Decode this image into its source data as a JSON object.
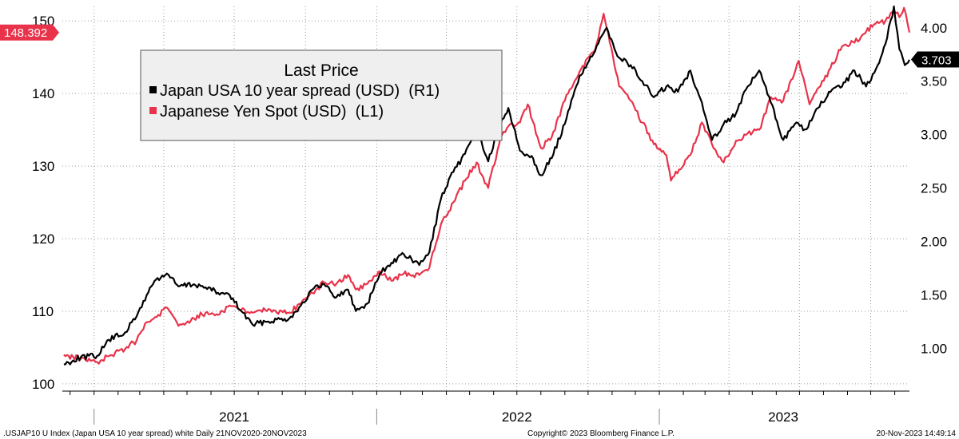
{
  "chart_data": {
    "type": "line",
    "legend": {
      "title": "Last Price",
      "placement": "top-left"
    },
    "series": [
      {
        "name": "Japan USA 10 year spread (USD)  (R1)",
        "axis": "right",
        "color": "#000000",
        "last_value_label": "3.703",
        "points": [
          [
            "2020-11-23",
            0.85
          ],
          [
            "2020-12-15",
            0.92
          ],
          [
            "2021-01-05",
            0.93
          ],
          [
            "2021-01-20",
            1.08
          ],
          [
            "2021-02-10",
            1.15
          ],
          [
            "2021-02-25",
            1.3
          ],
          [
            "2021-03-10",
            1.5
          ],
          [
            "2021-03-20",
            1.63
          ],
          [
            "2021-04-05",
            1.7
          ],
          [
            "2021-04-20",
            1.58
          ],
          [
            "2021-05-10",
            1.6
          ],
          [
            "2021-05-25",
            1.57
          ],
          [
            "2021-06-10",
            1.52
          ],
          [
            "2021-06-25",
            1.5
          ],
          [
            "2021-07-10",
            1.35
          ],
          [
            "2021-07-25",
            1.22
          ],
          [
            "2021-08-10",
            1.25
          ],
          [
            "2021-08-25",
            1.27
          ],
          [
            "2021-09-10",
            1.28
          ],
          [
            "2021-09-25",
            1.4
          ],
          [
            "2021-10-10",
            1.55
          ],
          [
            "2021-10-25",
            1.6
          ],
          [
            "2021-11-10",
            1.48
          ],
          [
            "2021-11-25",
            1.55
          ],
          [
            "2021-12-05",
            1.35
          ],
          [
            "2021-12-20",
            1.42
          ],
          [
            "2022-01-05",
            1.7
          ],
          [
            "2022-01-20",
            1.8
          ],
          [
            "2022-02-05",
            1.88
          ],
          [
            "2022-02-25",
            1.78
          ],
          [
            "2022-03-10",
            1.9
          ],
          [
            "2022-03-25",
            2.4
          ],
          [
            "2022-04-10",
            2.65
          ],
          [
            "2022-04-25",
            2.82
          ],
          [
            "2022-05-10",
            3.05
          ],
          [
            "2022-05-25",
            2.75
          ],
          [
            "2022-06-10",
            3.1
          ],
          [
            "2022-06-20",
            3.25
          ],
          [
            "2022-07-05",
            2.85
          ],
          [
            "2022-07-20",
            2.8
          ],
          [
            "2022-08-01",
            2.62
          ],
          [
            "2022-08-15",
            2.78
          ],
          [
            "2022-09-01",
            3.1
          ],
          [
            "2022-09-20",
            3.55
          ],
          [
            "2022-10-10",
            3.78
          ],
          [
            "2022-10-25",
            4.0
          ],
          [
            "2022-11-10",
            3.72
          ],
          [
            "2022-11-25",
            3.65
          ],
          [
            "2022-12-10",
            3.5
          ],
          [
            "2022-12-25",
            3.35
          ],
          [
            "2023-01-10",
            3.45
          ],
          [
            "2023-01-25",
            3.4
          ],
          [
            "2023-02-10",
            3.6
          ],
          [
            "2023-02-25",
            3.3
          ],
          [
            "2023-03-10",
            2.95
          ],
          [
            "2023-03-25",
            3.1
          ],
          [
            "2023-04-10",
            3.2
          ],
          [
            "2023-04-25",
            3.45
          ],
          [
            "2023-05-10",
            3.6
          ],
          [
            "2023-05-25",
            3.3
          ],
          [
            "2023-06-10",
            2.95
          ],
          [
            "2023-06-25",
            3.1
          ],
          [
            "2023-07-10",
            3.05
          ],
          [
            "2023-07-25",
            3.25
          ],
          [
            "2023-08-10",
            3.4
          ],
          [
            "2023-08-25",
            3.45
          ],
          [
            "2023-09-10",
            3.6
          ],
          [
            "2023-09-25",
            3.45
          ],
          [
            "2023-10-10",
            3.65
          ],
          [
            "2023-10-20",
            3.85
          ],
          [
            "2023-10-31",
            4.2
          ],
          [
            "2023-11-07",
            3.8
          ],
          [
            "2023-11-14",
            3.65
          ],
          [
            "2023-11-20",
            3.7
          ]
        ]
      },
      {
        "name": "Japanese Yen Spot (USD)  (L1)",
        "axis": "left",
        "color": "#e8334a",
        "last_value_label": "148.392",
        "points": [
          [
            "2020-11-23",
            104.0
          ],
          [
            "2020-12-15",
            103.5
          ],
          [
            "2021-01-05",
            103.0
          ],
          [
            "2021-01-20",
            103.8
          ],
          [
            "2021-02-10",
            104.8
          ],
          [
            "2021-02-25",
            106.0
          ],
          [
            "2021-03-10",
            108.5
          ],
          [
            "2021-03-25",
            109.5
          ],
          [
            "2021-04-05",
            110.5
          ],
          [
            "2021-04-20",
            108.0
          ],
          [
            "2021-05-10",
            109.0
          ],
          [
            "2021-05-25",
            109.8
          ],
          [
            "2021-06-10",
            109.5
          ],
          [
            "2021-06-25",
            110.8
          ],
          [
            "2021-07-10",
            110.2
          ],
          [
            "2021-07-25",
            109.8
          ],
          [
            "2021-08-10",
            110.2
          ],
          [
            "2021-08-25",
            109.8
          ],
          [
            "2021-09-10",
            109.8
          ],
          [
            "2021-09-25",
            111.0
          ],
          [
            "2021-10-10",
            112.5
          ],
          [
            "2021-10-25",
            114.0
          ],
          [
            "2021-11-10",
            113.8
          ],
          [
            "2021-11-25",
            115.0
          ],
          [
            "2021-12-05",
            113.0
          ],
          [
            "2021-12-20",
            113.8
          ],
          [
            "2022-01-05",
            115.5
          ],
          [
            "2022-01-20",
            114.2
          ],
          [
            "2022-02-05",
            115.2
          ],
          [
            "2022-02-25",
            115.0
          ],
          [
            "2022-03-10",
            116.0
          ],
          [
            "2022-03-25",
            122.0
          ],
          [
            "2022-04-10",
            125.0
          ],
          [
            "2022-04-25",
            128.0
          ],
          [
            "2022-05-10",
            130.5
          ],
          [
            "2022-05-25",
            127.0
          ],
          [
            "2022-06-10",
            134.0
          ],
          [
            "2022-06-20",
            135.5
          ],
          [
            "2022-07-05",
            136.0
          ],
          [
            "2022-07-15",
            138.5
          ],
          [
            "2022-08-01",
            132.5
          ],
          [
            "2022-08-15",
            134.0
          ],
          [
            "2022-09-01",
            139.0
          ],
          [
            "2022-09-20",
            143.0
          ],
          [
            "2022-10-10",
            146.0
          ],
          [
            "2022-10-21",
            151.0
          ],
          [
            "2022-11-10",
            141.0
          ],
          [
            "2022-11-25",
            139.0
          ],
          [
            "2022-12-10",
            136.0
          ],
          [
            "2022-12-25",
            133.0
          ],
          [
            "2023-01-10",
            131.5
          ],
          [
            "2023-01-16",
            128.0
          ],
          [
            "2023-02-10",
            131.5
          ],
          [
            "2023-02-25",
            136.0
          ],
          [
            "2023-03-10",
            133.0
          ],
          [
            "2023-03-25",
            130.5
          ],
          [
            "2023-04-10",
            133.5
          ],
          [
            "2023-04-25",
            134.5
          ],
          [
            "2023-05-10",
            135.0
          ],
          [
            "2023-05-25",
            139.5
          ],
          [
            "2023-06-10",
            139.0
          ],
          [
            "2023-06-30",
            144.5
          ],
          [
            "2023-07-14",
            138.5
          ],
          [
            "2023-07-28",
            141.0
          ],
          [
            "2023-08-10",
            143.5
          ],
          [
            "2023-08-25",
            146.5
          ],
          [
            "2023-09-10",
            147.0
          ],
          [
            "2023-09-25",
            148.5
          ],
          [
            "2023-10-05",
            149.5
          ],
          [
            "2023-10-20",
            150.0
          ],
          [
            "2023-10-31",
            151.5
          ],
          [
            "2023-11-07",
            150.5
          ],
          [
            "2023-11-13",
            151.8
          ],
          [
            "2023-11-20",
            148.4
          ]
        ]
      }
    ],
    "y_left": {
      "ticks": [
        "100",
        "110",
        "120",
        "130",
        "140",
        "150"
      ],
      "ylim": [
        99,
        152
      ]
    },
    "y_right": {
      "ticks": [
        "1.00",
        "1.50",
        "2.00",
        "2.50",
        "3.00",
        "3.50",
        "4.00"
      ],
      "ylim": [
        0.6,
        4.2
      ]
    },
    "x_axis": {
      "range": [
        "2020-11-21",
        "2023-11-20"
      ],
      "year_labels": [
        {
          "label": "2021",
          "center": "2021-07-01"
        },
        {
          "label": "2022",
          "center": "2022-07-01"
        },
        {
          "label": "2023",
          "center": "2023-06-10"
        }
      ],
      "year_separators": [
        "2021-01-01",
        "2022-01-01",
        "2023-01-01"
      ]
    },
    "grid": true
  },
  "footer": {
    "left": ".USJAP10 U Index (Japan USA 10 year spread) white  Daily 21NOV2020-20NOV2023",
    "center": "Copyright© 2023 Bloomberg Finance L.P.",
    "right": "20-Nov-2023 14:49:14"
  }
}
